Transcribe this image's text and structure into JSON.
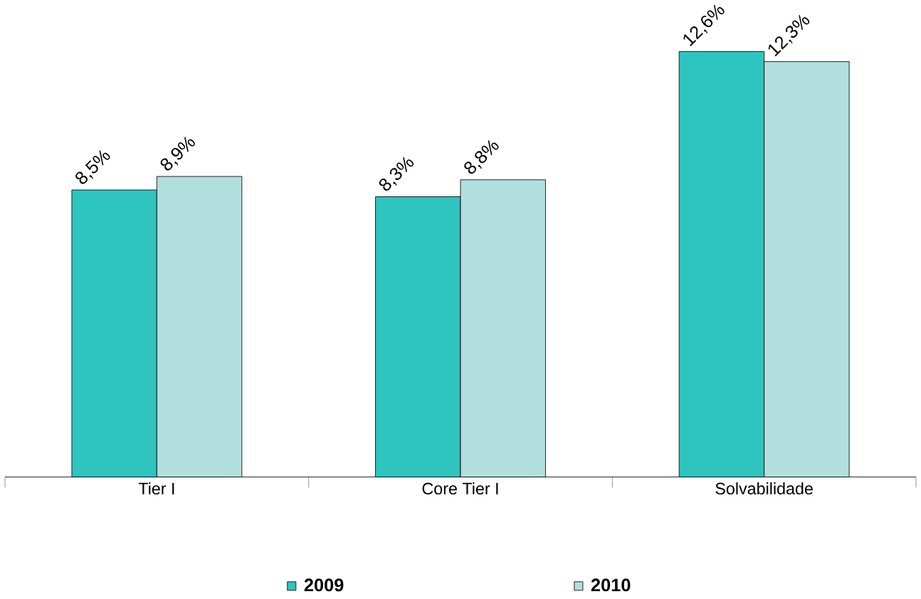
{
  "chart_data": {
    "type": "bar",
    "categories": [
      "Tier I",
      "Core Tier I",
      "Solvabilidade"
    ],
    "series": [
      {
        "name": "2009",
        "color": "#2ec4c0",
        "values": [
          8.5,
          8.3,
          12.6
        ],
        "value_labels": [
          "8,5%",
          "8,3%",
          "12,6%"
        ]
      },
      {
        "name": "2010",
        "color": "#b3dede",
        "values": [
          8.9,
          8.8,
          12.3
        ],
        "value_labels": [
          "8,9%",
          "8,8%",
          "12,3%"
        ]
      }
    ],
    "legend": "bottom"
  }
}
